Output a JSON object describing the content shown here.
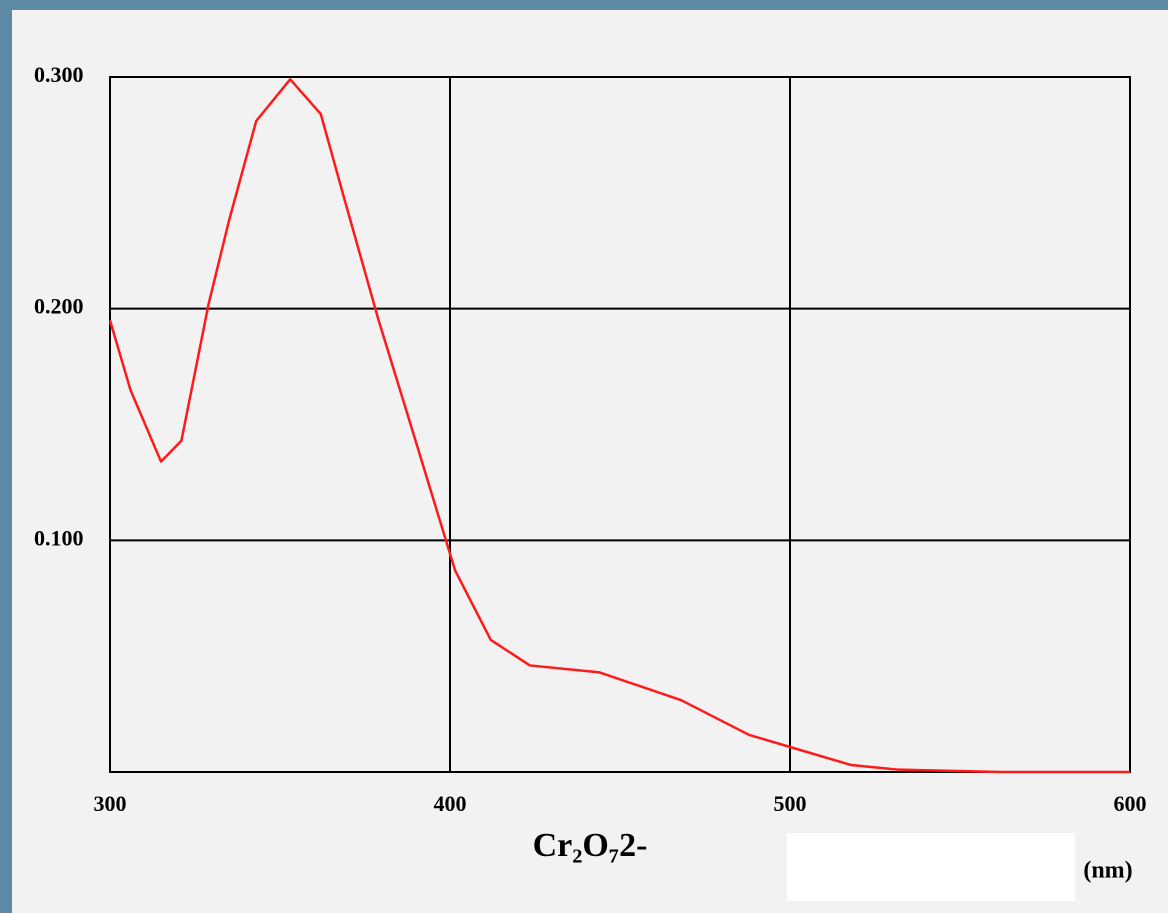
{
  "chart_data": {
    "type": "line",
    "x_label": "Cr₂O₇2-",
    "x_unit": "(nm)",
    "x": [
      300,
      306,
      315,
      321,
      329,
      335,
      343,
      353,
      362,
      369,
      379,
      388,
      401.5,
      412,
      423.5,
      444,
      468,
      488,
      503,
      518,
      532,
      562,
      600
    ],
    "series": [
      {
        "color": "#ff1a1a",
        "values": [
          0.195,
          0.165,
          0.134,
          0.143,
          0.202,
          0.238,
          0.281,
          0.299,
          0.284,
          0.247,
          0.195,
          0.152,
          0.087,
          0.057,
          0.046,
          0.043,
          0.031,
          0.016,
          0.0095,
          0.003,
          0.001,
          0,
          0
        ]
      }
    ],
    "xlim": [
      300,
      600
    ],
    "xticks": [
      300,
      400,
      500,
      600
    ],
    "ylim": [
      0,
      0.3
    ],
    "yticks": [
      {
        "value": 0.1,
        "label": "0.100"
      },
      {
        "value": 0.2,
        "label": "0.200"
      },
      {
        "value": 0.3,
        "label": "0.300"
      }
    ],
    "grid": true
  }
}
